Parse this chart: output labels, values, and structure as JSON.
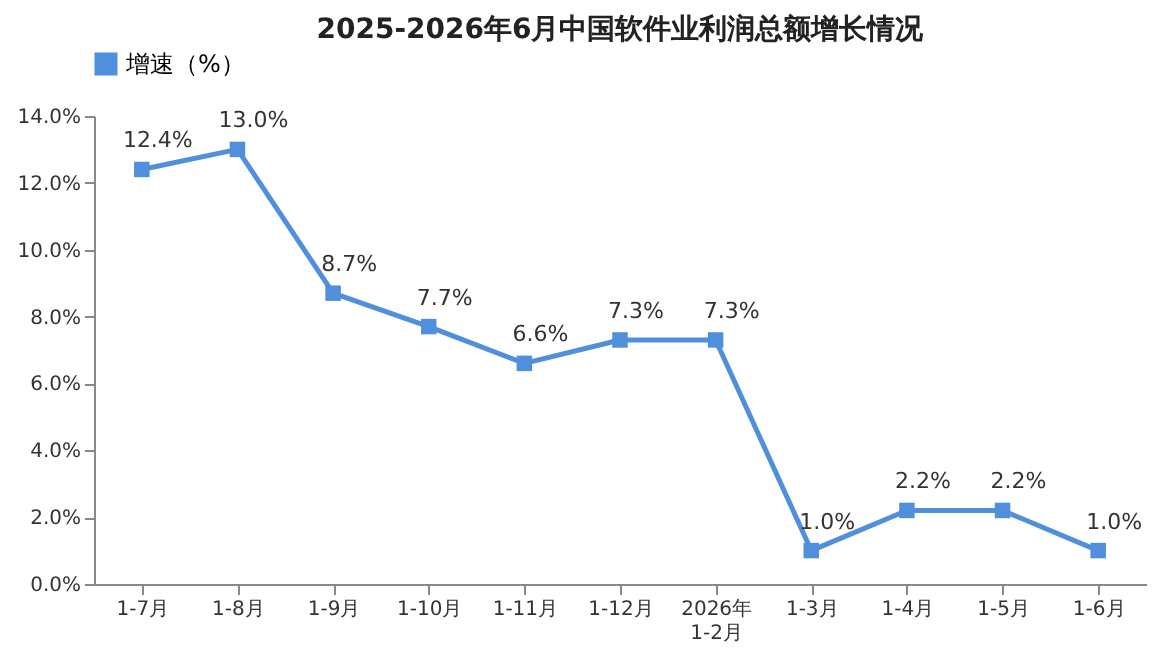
{
  "chart_data": {
    "type": "line",
    "title": "2025-2026年6月中国软件业利润总额增长情况",
    "categories": [
      "1-7月",
      "1-8月",
      "1-9月",
      "1-10月",
      "1-11月",
      "1-12月",
      "2026年\n1-2月",
      "1-3月",
      "1-4月",
      "1-5月",
      "1-6月"
    ],
    "series": [
      {
        "name": "增速（%）",
        "color": "#4f8fdc",
        "values": [
          12.4,
          13.0,
          8.7,
          7.7,
          6.6,
          7.3,
          7.3,
          1.0,
          2.2,
          2.2,
          1.0
        ],
        "value_labels": [
          "12.4%",
          "13.0%",
          "8.7%",
          "7.7%",
          "6.6%",
          "7.3%",
          "7.3%",
          "1.0%",
          "2.2%",
          "2.2%",
          "1.0%"
        ]
      }
    ],
    "ylim": [
      0,
      14
    ],
    "yticks": [
      {
        "value": 0,
        "label": "0.0%"
      },
      {
        "value": 2,
        "label": "2.0%"
      },
      {
        "value": 4,
        "label": "4.0%"
      },
      {
        "value": 6,
        "label": "6.0%"
      },
      {
        "value": 8,
        "label": "8.0%"
      },
      {
        "value": 10,
        "label": "10.0%"
      },
      {
        "value": 12,
        "label": "12.0%"
      },
      {
        "value": 14,
        "label": "14.0%"
      }
    ],
    "grid": false,
    "legend": "top",
    "marker": "square",
    "line_style": "solid"
  }
}
